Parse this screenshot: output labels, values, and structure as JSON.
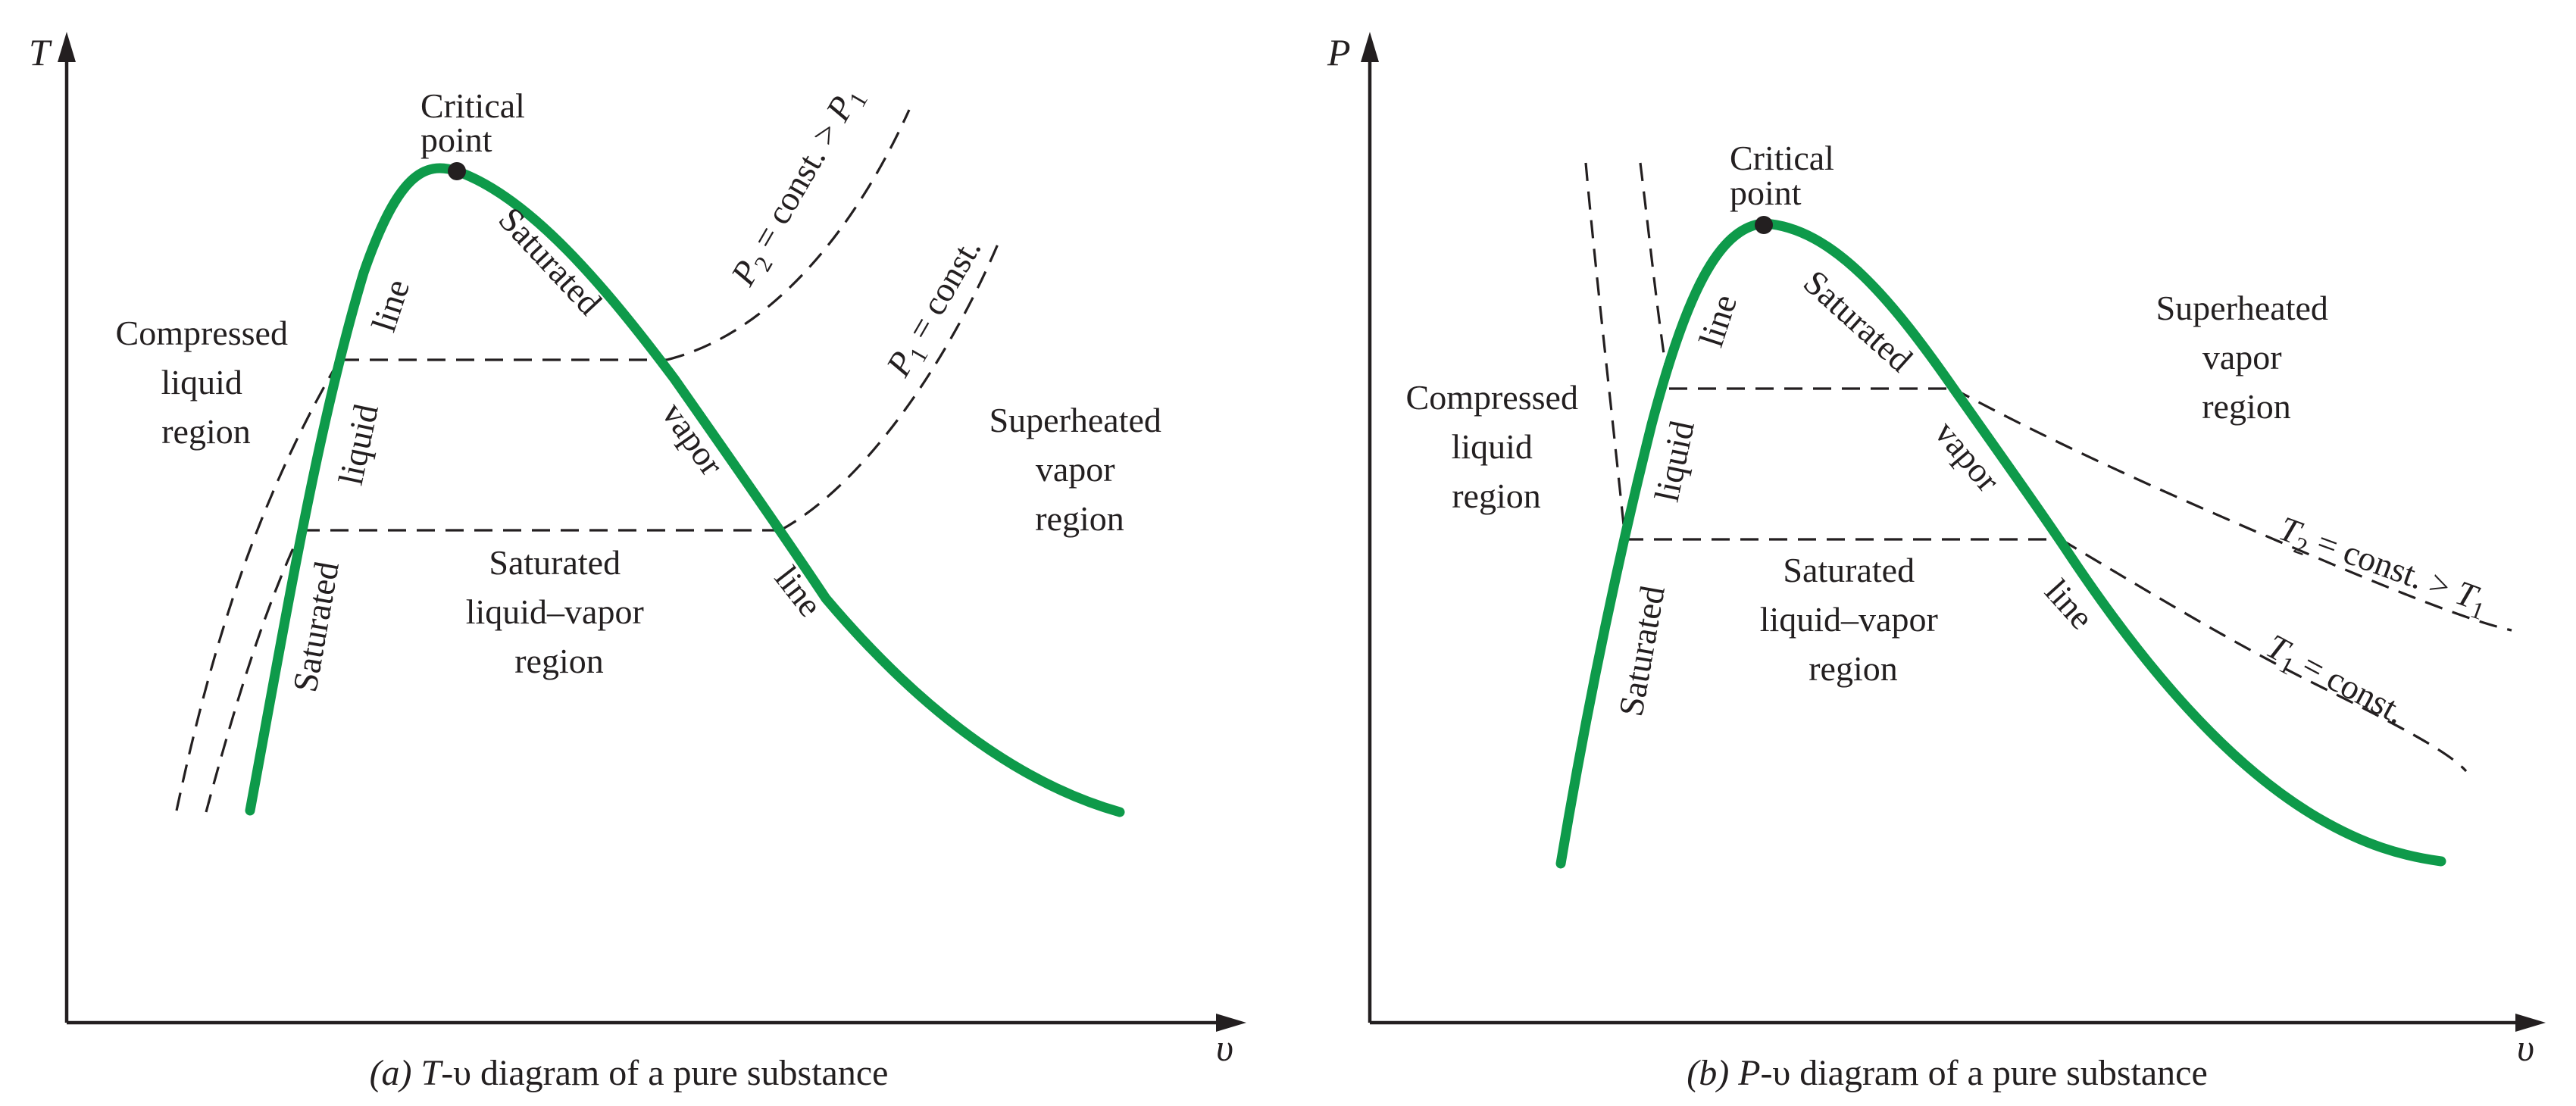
{
  "diagram_a": {
    "y_axis": "T",
    "x_axis": "υ",
    "critical_point": [
      "Critical",
      "point"
    ],
    "compressed": [
      "Compressed",
      "liquid",
      "region"
    ],
    "superheated": [
      "Superheated",
      "vapor",
      "region"
    ],
    "two_phase": [
      "Saturated",
      "liquid–vapor",
      "region"
    ],
    "sat_liquid": [
      "Saturated",
      "liquid",
      "line"
    ],
    "sat_vapor": [
      "Saturated",
      "vapor",
      "line"
    ],
    "isobar_high": {
      "sym": "P",
      "sub": "2",
      "rest": " = const. > ",
      "sym2": "P",
      "sub2": "1"
    },
    "isobar_low": {
      "sym": "P",
      "sub": "1",
      "rest": " = const."
    },
    "caption": {
      "label": "(a)",
      "var": "T",
      "rest": "-υ diagram of a pure substance"
    }
  },
  "diagram_b": {
    "y_axis": "P",
    "x_axis": "υ",
    "critical_point": [
      "Critical",
      "point"
    ],
    "compressed": [
      "Compressed",
      "liquid",
      "region"
    ],
    "superheated": [
      "Superheated",
      "vapor",
      "region"
    ],
    "two_phase": [
      "Saturated",
      "liquid–vapor",
      "region"
    ],
    "sat_liquid": [
      "Saturated",
      "liquid",
      "line"
    ],
    "sat_vapor": [
      "Saturated",
      "vapor",
      "line"
    ],
    "isotherm_high": {
      "sym": "T",
      "sub": "2",
      "rest": " = const. > ",
      "sym2": "T",
      "sub2": "1"
    },
    "isotherm_low": {
      "sym": "T",
      "sub": "1",
      "rest": " = const."
    },
    "caption": {
      "label": "(b)",
      "var": "P",
      "rest": "-υ diagram of a pure substance"
    }
  },
  "colors": {
    "saturation_dome": "#0e9a4a",
    "ink": "#231f20"
  }
}
